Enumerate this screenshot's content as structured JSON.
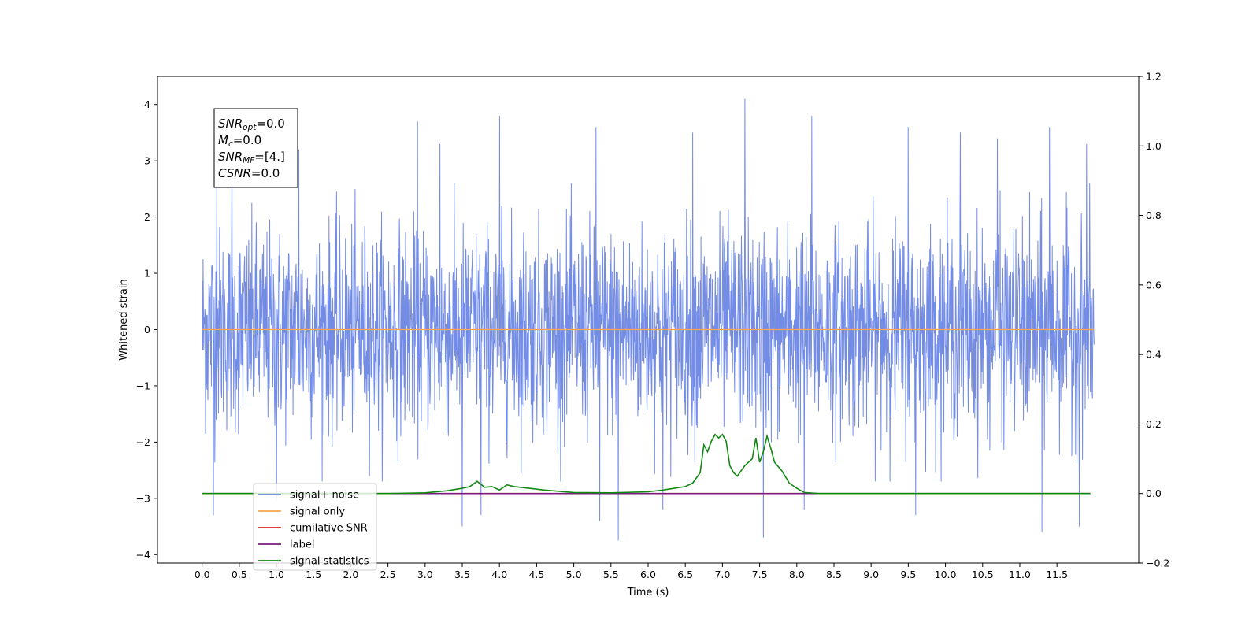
{
  "chart_data": {
    "type": "line",
    "xlabel": "Time (s)",
    "ylabel": "Whitened strain",
    "xlim": [
      -0.6,
      12.6
    ],
    "ylim": [
      -4.15,
      4.5
    ],
    "y2lim": [
      -0.2,
      1.2
    ],
    "x_ticks": [
      "0.0",
      "0.5",
      "1.0",
      "1.5",
      "2.0",
      "2.5",
      "3.0",
      "3.5",
      "4.0",
      "4.5",
      "5.0",
      "5.5",
      "6.0",
      "6.5",
      "7.0",
      "7.5",
      "8.0",
      "8.5",
      "9.0",
      "9.5",
      "10.0",
      "10.5",
      "11.0",
      "11.5"
    ],
    "y_ticks": [
      "−4",
      "−3",
      "−2",
      "−1",
      "0",
      "1",
      "2",
      "3",
      "4"
    ],
    "y2_ticks": [
      "−0.2",
      "0.0",
      "0.2",
      "0.4",
      "0.6",
      "0.8",
      "1.0",
      "1.2"
    ],
    "annotation": {
      "lines": [
        {
          "sym": "SNR",
          "sub": "opt",
          "rest": "=0.0"
        },
        {
          "sym": "M",
          "sub": "c",
          "rest": "=0.0"
        },
        {
          "sym": "SNR",
          "sub": "MF",
          "rest": "=[4.]"
        },
        {
          "sym": "CSNR",
          "sub": "",
          "rest": "=0.0"
        }
      ]
    },
    "legend_position": "lower-left",
    "series": [
      {
        "name": "signal+ noise",
        "color": "#6b86e4",
        "axis": "left",
        "noise_spread": 1.0,
        "x_range": [
          0.0,
          12.0
        ],
        "peaks": [
          [
            0.2,
            2.9
          ],
          [
            0.4,
            3.0
          ],
          [
            1.3,
            3.2
          ],
          [
            2.9,
            3.7
          ],
          [
            3.2,
            3.3
          ],
          [
            4.0,
            3.8
          ],
          [
            5.3,
            3.6
          ],
          [
            6.6,
            3.5
          ],
          [
            7.3,
            4.1
          ],
          [
            8.2,
            3.8
          ],
          [
            9.5,
            3.6
          ],
          [
            10.2,
            3.5
          ],
          [
            10.7,
            3.4
          ],
          [
            11.4,
            3.6
          ],
          [
            11.9,
            3.3
          ]
        ],
        "troughs": [
          [
            0.15,
            -3.3
          ],
          [
            1.0,
            -3.0
          ],
          [
            3.5,
            -3.5
          ],
          [
            3.75,
            -3.3
          ],
          [
            5.35,
            -3.4
          ],
          [
            5.6,
            -3.75
          ],
          [
            6.2,
            -3.2
          ],
          [
            7.55,
            -3.7
          ],
          [
            8.1,
            -3.2
          ],
          [
            9.6,
            -3.3
          ],
          [
            11.3,
            -3.6
          ],
          [
            11.8,
            -3.5
          ]
        ]
      },
      {
        "name": "signal only",
        "color": "#ffa64d",
        "axis": "left",
        "x": [
          0.0,
          12.0
        ],
        "y": [
          0.0,
          0.0
        ]
      },
      {
        "name": "cumilative SNR",
        "color": "#e62222",
        "axis": "left",
        "x": [],
        "y": []
      },
      {
        "name": "label",
        "color": "#7a1a7a",
        "axis": "right",
        "x": [
          0.0,
          11.95
        ],
        "y": [
          0.0,
          0.0
        ]
      },
      {
        "name": "signal statistics",
        "color": "#118811",
        "axis": "right",
        "x": [
          0.0,
          2.5,
          3.0,
          3.3,
          3.5,
          3.6,
          3.7,
          3.8,
          3.9,
          4.0,
          4.1,
          4.2,
          4.4,
          4.6,
          5.0,
          5.5,
          6.0,
          6.2,
          6.5,
          6.6,
          6.7,
          6.75,
          6.8,
          6.85,
          6.9,
          6.95,
          7.0,
          7.05,
          7.1,
          7.15,
          7.2,
          7.3,
          7.4,
          7.45,
          7.5,
          7.55,
          7.6,
          7.65,
          7.7,
          7.8,
          7.9,
          8.0,
          8.1,
          8.3,
          8.8,
          9.5,
          11.95
        ],
        "y": [
          0.0,
          0.0,
          0.002,
          0.008,
          0.015,
          0.02,
          0.035,
          0.018,
          0.02,
          0.01,
          0.025,
          0.02,
          0.015,
          0.01,
          0.003,
          0.002,
          0.005,
          0.01,
          0.02,
          0.03,
          0.06,
          0.14,
          0.12,
          0.15,
          0.17,
          0.16,
          0.17,
          0.15,
          0.08,
          0.06,
          0.05,
          0.08,
          0.1,
          0.16,
          0.09,
          0.12,
          0.165,
          0.13,
          0.09,
          0.065,
          0.03,
          0.015,
          0.003,
          0.0,
          0.0,
          0.0,
          0.0
        ]
      }
    ]
  }
}
